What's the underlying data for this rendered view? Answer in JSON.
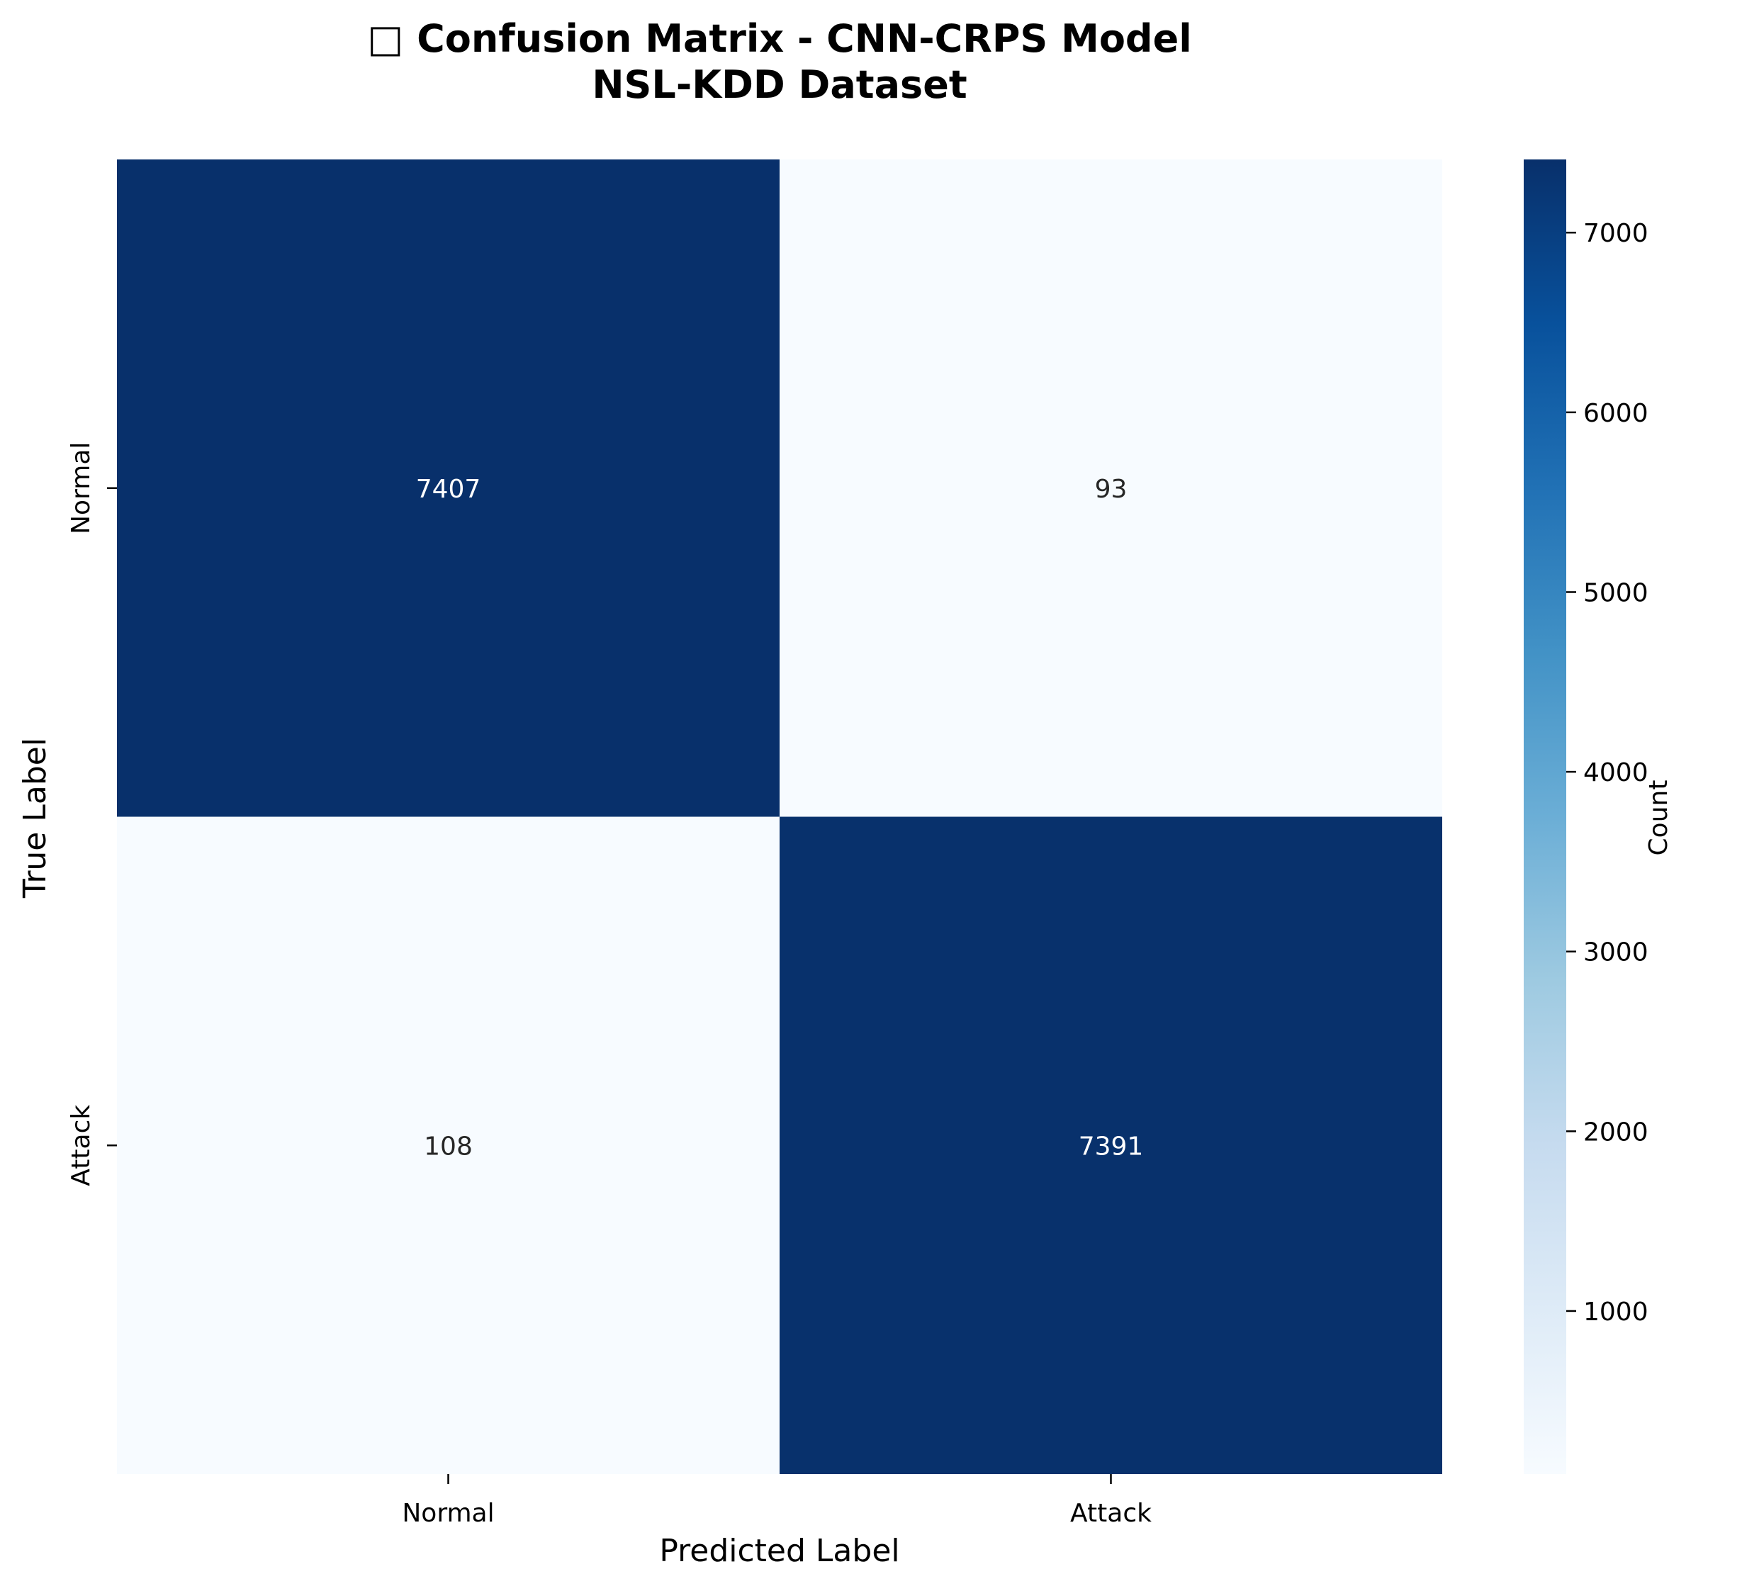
{
  "chart_data": {
    "type": "heatmap",
    "title_line1": "□ Confusion Matrix - CNN-CRPS Model",
    "title_line2": "NSL-KDD Dataset",
    "xlabel": "Predicted Label",
    "ylabel": "True Label",
    "x_categories": [
      "Normal",
      "Attack"
    ],
    "y_categories": [
      "Normal",
      "Attack"
    ],
    "values": [
      [
        7407,
        93
      ],
      [
        108,
        7391
      ]
    ],
    "colormap": "Blues",
    "colorbar": {
      "label": "Count",
      "min": 93,
      "max": 7407,
      "ticks": [
        1000,
        2000,
        3000,
        4000,
        5000,
        6000,
        7000
      ]
    },
    "colors": {
      "low": "#f7fbff",
      "high": "#08306b"
    }
  }
}
